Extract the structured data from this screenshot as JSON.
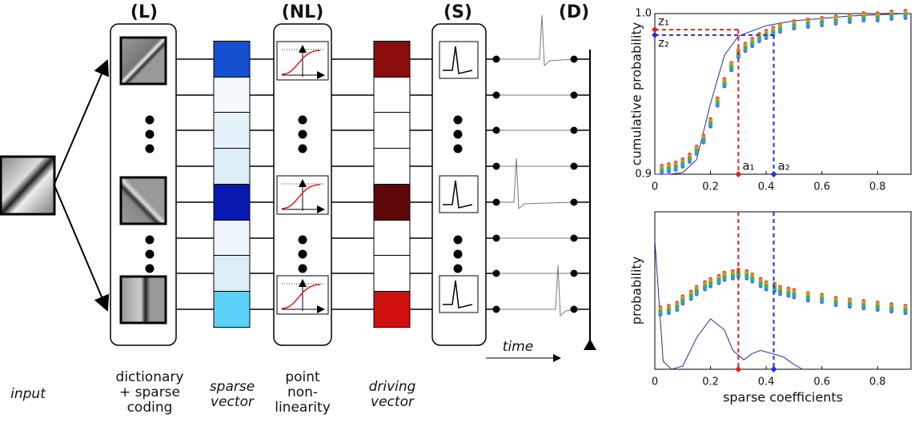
{
  "diagram": {
    "headers": [
      "(L)",
      "(NL)",
      "(S)",
      "(D)"
    ],
    "input_caption": [
      "input"
    ],
    "captions": [
      [
        "dictionary",
        "+ sparse",
        "coding"
      ],
      [
        "sparse",
        "vector"
      ],
      [
        "point",
        "non-",
        "linearity"
      ],
      [
        "driving",
        "vector"
      ]
    ],
    "sparse_vector_colors": [
      "#1450d0",
      "#f3f9fd",
      "#e6f2fa",
      "#dbeef8",
      "#0a1ab0",
      "#eef4fb",
      "#dcedf8",
      "#5bd2f5"
    ],
    "driving_vector_colors": [
      "#8b0d0d",
      "#ffffff",
      "#ffffff",
      "#ffffff",
      "#5c0808",
      "#ffffff",
      "#ffffff",
      "#d01010"
    ],
    "time_label": "time"
  },
  "chart_data": [
    {
      "type": "line",
      "ylabel": "cumulative probability",
      "xlim": [
        0,
        0.92
      ],
      "ylim": [
        0.9,
        1.0
      ],
      "xticks": [
        0,
        0.2,
        0.4,
        0.6,
        0.8
      ],
      "yticks": [
        0.9,
        {
          "value": 1,
          "label": "1.0"
        }
      ],
      "series": [
        {
          "color": "#2a2a9a",
          "x": [
            0,
            0.05,
            0.1,
            0.15,
            0.2,
            0.25,
            0.3,
            0.4,
            0.5,
            0.7,
            0.9
          ],
          "values": [
            0.9,
            0.9,
            0.901,
            0.909,
            0.944,
            0.974,
            0.986,
            0.9925,
            0.9955,
            0.9985,
            1.0
          ]
        },
        {
          "style": "points",
          "colors": [
            "#e03030",
            "#30a0e0",
            "#e0a020",
            "#8040c0",
            "#30b060"
          ],
          "x": [
            0.025,
            0.05,
            0.075,
            0.1,
            0.125,
            0.15,
            0.175,
            0.2,
            0.225,
            0.25,
            0.275,
            0.3,
            0.325,
            0.35,
            0.375,
            0.4,
            0.425,
            0.45,
            0.5,
            0.55,
            0.6,
            0.65,
            0.7,
            0.75,
            0.8,
            0.85,
            0.9
          ],
          "values": [
            0.903,
            0.904,
            0.905,
            0.907,
            0.91,
            0.915,
            0.922,
            0.932,
            0.945,
            0.957,
            0.967,
            0.975,
            0.979,
            0.982,
            0.985,
            0.987,
            0.989,
            0.991,
            0.993,
            0.994,
            0.995,
            0.996,
            0.997,
            0.998,
            0.998,
            0.999,
            0.9995
          ]
        }
      ],
      "guides": [
        {
          "x": 0.3,
          "y": 0.99,
          "color": "#e02020",
          "x_label": "a₁",
          "y_label": "z₁"
        },
        {
          "x": 0.427,
          "y": 0.9866,
          "color": "#2030e0",
          "x_label": "a₂",
          "y_label": "z₂"
        }
      ]
    },
    {
      "type": "line",
      "ylabel": "probability",
      "xlabel": "sparse coefficients",
      "xlim": [
        0,
        0.92
      ],
      "ylim": [
        0,
        1
      ],
      "xticks": [
        0,
        0.2,
        0.4,
        0.6,
        0.8
      ],
      "series": [
        {
          "color": "#2a2a9a",
          "x": [
            0,
            0.03,
            0.06,
            0.1,
            0.15,
            0.2,
            0.25,
            0.28,
            0.32,
            0.35,
            0.38,
            0.42,
            0.46,
            0.5,
            0.53
          ],
          "values": [
            0.82,
            0.05,
            0,
            0.02,
            0.2,
            0.32,
            0.25,
            0.12,
            0.06,
            0.1,
            0.12,
            0.1,
            0.08,
            0.03,
            0
          ]
        },
        {
          "style": "points",
          "colors": [
            "#e03030",
            "#30a0e0",
            "#e0a020",
            "#8040c0",
            "#30b060"
          ],
          "x": [
            0.02,
            0.05,
            0.08,
            0.1,
            0.13,
            0.15,
            0.18,
            0.2,
            0.23,
            0.25,
            0.28,
            0.3,
            0.33,
            0.35,
            0.38,
            0.4,
            0.43,
            0.45,
            0.48,
            0.5,
            0.55,
            0.6,
            0.65,
            0.7,
            0.75,
            0.8,
            0.85,
            0.9
          ],
          "values": [
            0.37,
            0.38,
            0.4,
            0.44,
            0.47,
            0.5,
            0.53,
            0.55,
            0.57,
            0.59,
            0.6,
            0.61,
            0.6,
            0.58,
            0.55,
            0.53,
            0.52,
            0.5,
            0.49,
            0.48,
            0.46,
            0.45,
            0.43,
            0.42,
            0.41,
            0.4,
            0.39,
            0.38
          ]
        }
      ],
      "guides": [
        {
          "x": 0.3,
          "color": "#e02020"
        },
        {
          "x": 0.427,
          "color": "#2030e0"
        }
      ]
    }
  ]
}
